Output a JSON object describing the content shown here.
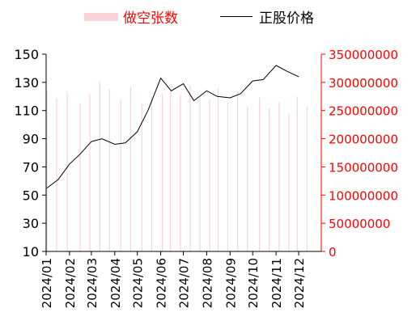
{
  "legend": {
    "short_label": "做空张数",
    "price_label": "正股价格"
  },
  "chart_data": {
    "type": "bar+line",
    "x": [
      "2024/01/02",
      "2024/01/15",
      "2024/01/29",
      "2024/02/15",
      "2024/02/28",
      "2024/03/12",
      "2024/03/25",
      "2024/04/09",
      "2024/04/22",
      "2024/05/07",
      "2024/05/20",
      "2024/06/03",
      "2024/06/14",
      "2024/06/27",
      "2024/07/10",
      "2024/07/23",
      "2024/08/05",
      "2024/08/16",
      "2024/08/29",
      "2024/09/11",
      "2024/09/24",
      "2024/10/10",
      "2024/10/23",
      "2024/11/05",
      "2024/11/18",
      "2024/11/29",
      "2024/12/12",
      "2024/12/31"
    ],
    "xticks": [
      "2024/01",
      "2024/02",
      "2024/03",
      "2024/04",
      "2024/05",
      "2024/06",
      "2024/07",
      "2024/08",
      "2024/09",
      "2024/10",
      "2024/11",
      "2024/12"
    ],
    "yticks_left": [
      "10",
      "30",
      "50",
      "70",
      "90",
      "110",
      "130",
      "150"
    ],
    "yticks_right": [
      "0",
      "50000000",
      "100000000",
      "150000000",
      "200000000",
      "250000000",
      "300000000",
      "350000000"
    ],
    "ylim_left": [
      10,
      150
    ],
    "ylim_right": [
      0,
      350000000
    ],
    "series": [
      {
        "name": "做空张数",
        "type": "bar",
        "axis": "right",
        "color": "#f9d3d8",
        "values": [
          285000000,
          271000000,
          283000000,
          262000000,
          279000000,
          302000000,
          288000000,
          270000000,
          292000000,
          262000000,
          273000000,
          280000000,
          287000000,
          278000000,
          294000000,
          275000000,
          270000000,
          290000000,
          265000000,
          284000000,
          258000000,
          273000000,
          254000000,
          265000000,
          245000000,
          275000000,
          257000000,
          280000000
        ]
      },
      {
        "name": "正股价格",
        "type": "line",
        "axis": "left",
        "color": "#000000",
        "points": [
          [
            "2024/01/02",
            55
          ],
          [
            "2024/01/17",
            61
          ],
          [
            "2024/02/01",
            72
          ],
          [
            "2024/02/15",
            79
          ],
          [
            "2024/03/01",
            88
          ],
          [
            "2024/03/15",
            90
          ],
          [
            "2024/04/01",
            86
          ],
          [
            "2024/04/15",
            87
          ],
          [
            "2024/05/01",
            95
          ],
          [
            "2024/05/15",
            110
          ],
          [
            "2024/06/01",
            133
          ],
          [
            "2024/06/15",
            124
          ],
          [
            "2024/07/01",
            129
          ],
          [
            "2024/07/15",
            117
          ],
          [
            "2024/08/01",
            124
          ],
          [
            "2024/08/15",
            120
          ],
          [
            "2024/09/01",
            119
          ],
          [
            "2024/09/15",
            122
          ],
          [
            "2024/10/01",
            131
          ],
          [
            "2024/10/15",
            132
          ],
          [
            "2024/11/01",
            142
          ],
          [
            "2024/11/15",
            138
          ],
          [
            "2024/12/01",
            134
          ]
        ]
      }
    ],
    "grid": false,
    "legend_position": "top"
  }
}
